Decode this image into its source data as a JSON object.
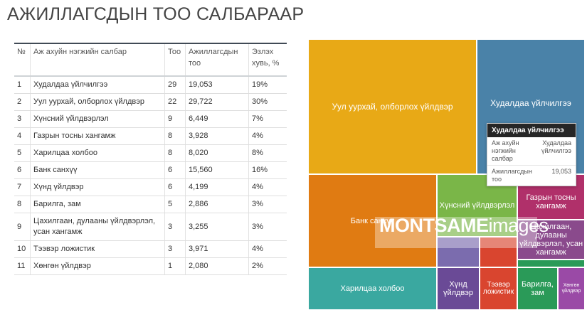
{
  "page_title": "АЖИЛЛАГСДЫН ТОО САЛБАРААР",
  "table": {
    "headers": {
      "no": "№",
      "sector": "Аж ахуйн нэгжийн салбар",
      "count": "Тоо",
      "employees": "Ажиллагсдын тоо",
      "share": "Эзлэх хувь, %"
    },
    "rows": [
      {
        "no": "1",
        "sector": "Худалдаа үйлчилгээ",
        "count": "29",
        "employees": "19,053",
        "share": "19%"
      },
      {
        "no": "2",
        "sector": "Уул уурхай, олборлох үйлдвэр",
        "count": "22",
        "employees": "29,722",
        "share": "30%"
      },
      {
        "no": "3",
        "sector": "Хүнсний үйлдвэрлэл",
        "count": "9",
        "employees": "6,449",
        "share": "7%"
      },
      {
        "no": "4",
        "sector": "Газрын тосны хангамж",
        "count": "8",
        "employees": "3,928",
        "share": "4%"
      },
      {
        "no": "5",
        "sector": "Харилцаа холбоо",
        "count": "8",
        "employees": "8,020",
        "share": "8%"
      },
      {
        "no": "6",
        "sector": "Банк санхүү",
        "count": "6",
        "employees": "15,560",
        "share": "16%"
      },
      {
        "no": "7",
        "sector": "Хүнд үйлдвэр",
        "count": "6",
        "employees": "4,199",
        "share": "4%"
      },
      {
        "no": "8",
        "sector": "Барилга, зам",
        "count": "5",
        "employees": "2,886",
        "share": "3%"
      },
      {
        "no": "9",
        "sector": "Цахилгаан, дулааны үйлдвэрлэл, усан хангамж",
        "count": "3",
        "employees": "3,255",
        "share": "3%"
      },
      {
        "no": "10",
        "sector": "Тээвэр ложистик",
        "count": "3",
        "employees": "3,971",
        "share": "4%"
      },
      {
        "no": "11",
        "sector": "Хөнгөн үйлдвэр",
        "count": "1",
        "employees": "2,080",
        "share": "2%"
      }
    ]
  },
  "treemap": {
    "tiles": {
      "mining": {
        "label": "Уул уурхай, олборлох үйлдвэр",
        "color": "#e8a916"
      },
      "trade": {
        "label": "Худалдаа үйлчилгээ",
        "color": "#4a82a8"
      },
      "bank": {
        "label": "Банк санхүү",
        "color": "#e07b12"
      },
      "food": {
        "label": "Хүнсний үйлдвэрлэл",
        "color": "#7ab648"
      },
      "oil": {
        "label": "Газрын тосны хангамж",
        "color": "#b0306a"
      },
      "power": {
        "label": "Цахилгаан, дулааны үйлдвэрлэл, усан хангамж",
        "color": "#8a4a8c"
      },
      "telecom": {
        "label": "Харилцаа холбоо",
        "color": "#3aa8a0"
      },
      "heavy": {
        "label": "Хүнд үйлдвэр",
        "color": "#6a4a96"
      },
      "transport": {
        "label": "Тээвэр ложистик",
        "color": "#d9452f"
      },
      "construction": {
        "label": "Барилга, зам",
        "color": "#2a9a58"
      },
      "light": {
        "label": "Хөнгөн үйлдвэр",
        "color": "#9a4aa6"
      },
      "small_blue": {
        "color": "#7b6cae"
      }
    },
    "tooltip": {
      "title": "Худалдаа үйлчилгээ",
      "row1_label": "Аж ахуйн нэгжийн салбар",
      "row1_value": "Худалдаа үйлчилгээ",
      "row2_label": "Ажиллагсдын тоо",
      "row2_value": "19,053"
    },
    "watermark": {
      "bold": "MONTSAME",
      "thin": "images"
    }
  }
}
